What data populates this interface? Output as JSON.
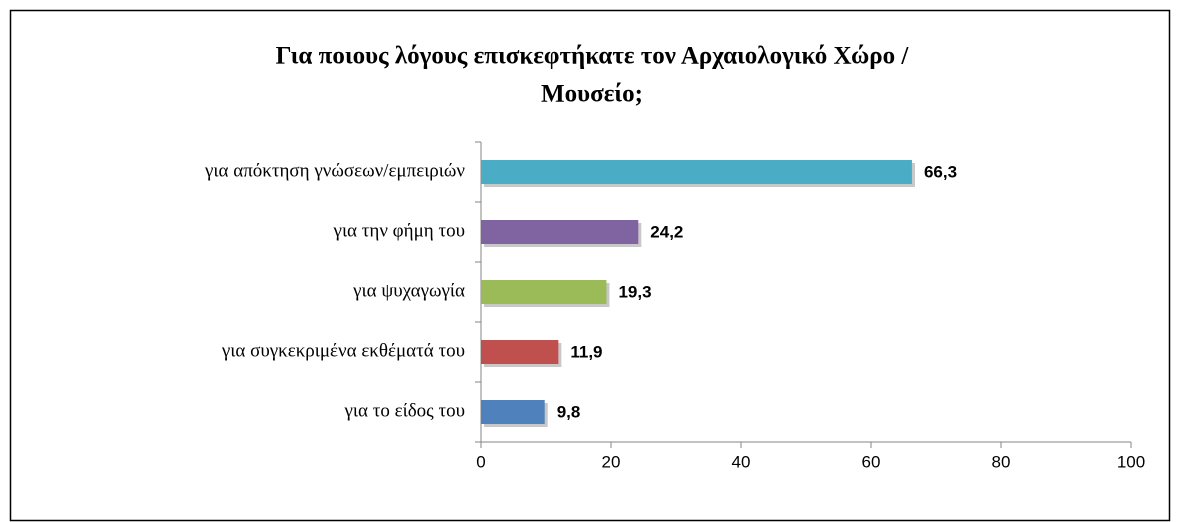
{
  "chart_data": {
    "type": "bar",
    "orientation": "horizontal",
    "title": [
      "Για ποιους λόγους επισκεφτήκατε τον  Αρχαιολογικό Χώρο /",
      "Μουσείο;"
    ],
    "categories": [
      "για απόκτηση γνώσεων/εμπειριών",
      "για την φήμη του",
      "για ψυχαγωγία",
      "για συγκεκριμένα εκθέματά του",
      "για το είδος του"
    ],
    "values": [
      66.3,
      24.2,
      19.3,
      11.9,
      9.8
    ],
    "value_labels": [
      "66,3",
      "24,2",
      "19,3",
      "11,9",
      "9,8"
    ],
    "colors": [
      "#4bacc6",
      "#8064a2",
      "#9bbb59",
      "#c0504d",
      "#4f81bd"
    ],
    "xlim": [
      0,
      100
    ],
    "xticks": [
      0,
      20,
      40,
      60,
      80,
      100
    ]
  }
}
